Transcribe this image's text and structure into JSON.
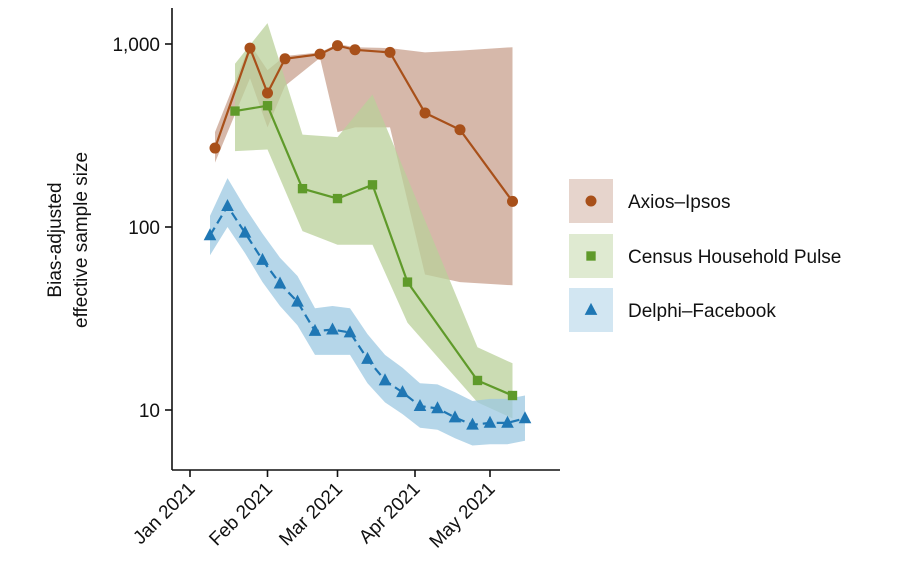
{
  "chart_data": {
    "type": "line",
    "title": "",
    "xlabel": "",
    "ylabel": [
      "Bias-adjusted",
      "effective sample size"
    ],
    "y_scale": "log",
    "ylim": [
      5,
      1700
    ],
    "xlim": [
      "2021-01-01",
      "2021-05-31"
    ],
    "x_ticks": [
      "2021-01-01",
      "2021-02-01",
      "2021-03-01",
      "2021-04-01",
      "2021-05-01"
    ],
    "x_tick_labels": [
      "Jan 2021",
      "Feb 2021",
      "Mar 2021",
      "Apr 2021",
      "May 2021"
    ],
    "y_ticks": [
      10,
      100,
      1000
    ],
    "y_tick_labels": [
      "10",
      "100",
      "1,000"
    ],
    "grid": false,
    "legend_position": "right",
    "series": [
      {
        "name": "Axios–Ipsos",
        "color": "#a8501a",
        "band_color": "#c8a08e",
        "marker": "circle",
        "line_style": "solid",
        "x": [
          "2021-01-11",
          "2021-01-25",
          "2021-02-01",
          "2021-02-08",
          "2021-02-22",
          "2021-03-01",
          "2021-03-08",
          "2021-03-22",
          "2021-04-05",
          "2021-04-19",
          "2021-05-10"
        ],
        "y": [
          270,
          950,
          540,
          830,
          880,
          980,
          930,
          900,
          420,
          340,
          138
        ],
        "lower": [
          225,
          650,
          350,
          590,
          840,
          330,
          350,
          350,
          55,
          50,
          48
        ],
        "upper": [
          330,
          1000,
          720,
          860,
          900,
          1000,
          960,
          950,
          900,
          920,
          960
        ]
      },
      {
        "name": "Census Household Pulse",
        "color": "#5f9a2a",
        "band_color": "#b9d09a",
        "marker": "square",
        "line_style": "solid",
        "x": [
          "2021-01-19",
          "2021-02-01",
          "2021-02-15",
          "2021-03-01",
          "2021-03-15",
          "2021-03-29",
          "2021-04-26",
          "2021-05-10"
        ],
        "y": [
          430,
          460,
          162,
          143,
          170,
          50,
          14.5,
          12
        ],
        "lower": [
          260,
          265,
          95,
          80,
          80,
          30,
          11,
          9
        ],
        "upper": [
          780,
          1300,
          320,
          310,
          530,
          185,
          22,
          18
        ]
      },
      {
        "name": "Delphi–Facebook",
        "color": "#1f77b4",
        "band_color": "#9cc8e2",
        "marker": "triangle",
        "line_style": "dashed",
        "x": [
          "2021-01-09",
          "2021-01-16",
          "2021-01-23",
          "2021-01-30",
          "2021-02-06",
          "2021-02-13",
          "2021-02-20",
          "2021-02-27",
          "2021-03-06",
          "2021-03-13",
          "2021-03-20",
          "2021-03-27",
          "2021-04-03",
          "2021-04-10",
          "2021-04-17",
          "2021-04-24",
          "2021-05-01",
          "2021-05-08",
          "2021-05-15"
        ],
        "y": [
          90,
          130,
          93,
          66,
          49,
          39,
          27,
          27.5,
          26.5,
          19,
          14.5,
          12.5,
          10.5,
          10.2,
          9.1,
          8.3,
          8.5,
          8.5,
          9
        ],
        "lower": [
          70,
          100,
          72,
          50,
          37,
          29,
          20,
          20,
          20,
          14,
          11,
          9.5,
          8,
          7.8,
          7,
          6.4,
          6.5,
          6.5,
          6.8
        ],
        "upper": [
          115,
          185,
          128,
          92,
          68,
          54,
          36,
          37,
          36,
          26,
          20,
          17,
          14,
          13.8,
          12.5,
          11.2,
          11.5,
          11.5,
          12
        ]
      }
    ]
  }
}
